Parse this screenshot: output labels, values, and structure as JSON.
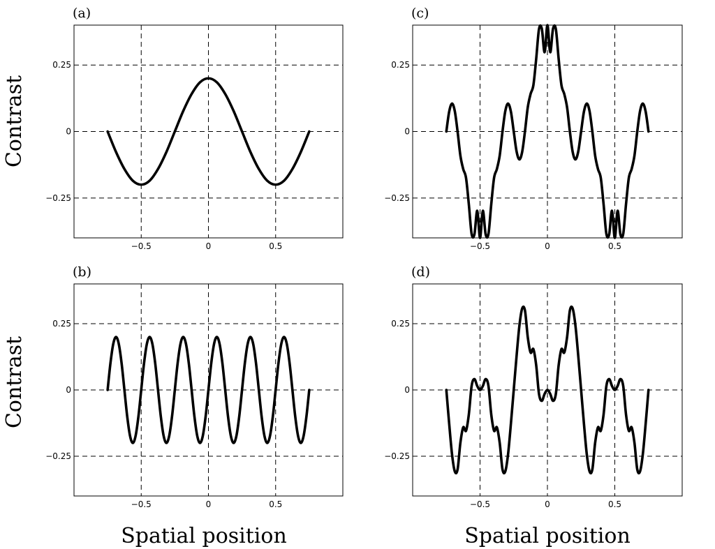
{
  "figure": {
    "ylabel_top": "Contrast",
    "ylabel_bottom": "Contrast",
    "xlabel_left": "Spatial position",
    "xlabel_right": "Spatial position"
  },
  "chart_data": [
    {
      "id": "a",
      "label": "(a)",
      "type": "line",
      "xlim": [
        -1.0,
        1.0
      ],
      "ylim": [
        -0.4,
        0.4
      ],
      "xticks": [
        -0.5,
        0,
        0.5
      ],
      "xtick_labels": [
        "−0.5",
        "0",
        "0.5"
      ],
      "yticks": [
        0.25,
        0,
        -0.25
      ],
      "ytick_labels": [
        "0.25",
        "0",
        "−0.25"
      ],
      "grid": true,
      "series": [
        {
          "x": [
            -0.75,
            -0.6875,
            -0.625,
            -0.5625,
            -0.5,
            -0.4375,
            -0.375,
            -0.3125,
            -0.25,
            -0.1875,
            -0.125,
            -0.0625,
            0,
            0.0625,
            0.125,
            0.1875,
            0.25,
            0.3125,
            0.375,
            0.4375,
            0.5,
            0.5625,
            0.625,
            0.6875,
            0.75
          ],
          "y": [
            0.0,
            -0.077,
            -0.141,
            -0.185,
            -0.2,
            -0.185,
            -0.141,
            -0.077,
            0.0,
            0.077,
            0.141,
            0.185,
            0.2,
            0.185,
            0.141,
            0.077,
            0.0,
            -0.077,
            -0.141,
            -0.185,
            -0.2,
            -0.185,
            -0.141,
            -0.077,
            0.0
          ]
        }
      ]
    },
    {
      "id": "b",
      "label": "(b)",
      "type": "line",
      "xlim": [
        -1.0,
        1.0
      ],
      "ylim": [
        -0.4,
        0.4
      ],
      "xticks": [
        -0.5,
        0,
        0.5
      ],
      "xtick_labels": [
        "−0.5",
        "0",
        "0.5"
      ],
      "yticks": [
        0.25,
        0,
        -0.25
      ],
      "ytick_labels": [
        "0.25",
        "0",
        "−0.25"
      ],
      "grid": true,
      "series": [
        {
          "x": [
            -0.75,
            -0.7292,
            -0.7083,
            -0.6875,
            -0.6667,
            -0.6458,
            -0.625,
            -0.6042,
            -0.5833,
            -0.5625,
            -0.5417,
            -0.5208,
            -0.5,
            -0.4792,
            -0.4583,
            -0.4375,
            -0.4167,
            -0.3958,
            -0.375,
            -0.3542,
            -0.3333,
            -0.3125,
            -0.2917,
            -0.2708,
            -0.25,
            -0.2292,
            -0.2083,
            -0.1875,
            -0.1667,
            -0.1458,
            -0.125,
            -0.1042,
            -0.0833,
            -0.0625,
            -0.0417,
            -0.0208,
            0,
            0.0208,
            0.0417,
            0.0625,
            0.0833,
            0.1042,
            0.125,
            0.1458,
            0.1667,
            0.1875,
            0.2083,
            0.2292,
            0.25,
            0.2708,
            0.2917,
            0.3125,
            0.3333,
            0.3542,
            0.375,
            0.3958,
            0.4167,
            0.4375,
            0.4583,
            0.4792,
            0.5,
            0.5208,
            0.5417,
            0.5625,
            0.5833,
            0.6042,
            0.625,
            0.6458,
            0.6667,
            0.6875,
            0.7083,
            0.7292,
            0.75
          ],
          "y": [
            0.0,
            0.1,
            0.173,
            0.2,
            0.173,
            0.1,
            0.0,
            -0.1,
            -0.173,
            -0.2,
            -0.173,
            -0.1,
            0.0,
            0.1,
            0.173,
            0.2,
            0.173,
            0.1,
            0.0,
            -0.1,
            -0.173,
            -0.2,
            -0.173,
            -0.1,
            0.0,
            0.1,
            0.173,
            0.2,
            0.173,
            0.1,
            0.0,
            -0.1,
            -0.173,
            -0.2,
            -0.173,
            -0.1,
            0.0,
            0.1,
            0.173,
            0.2,
            0.173,
            0.1,
            0.0,
            -0.1,
            -0.173,
            -0.2,
            -0.173,
            -0.1,
            0.0,
            0.1,
            0.173,
            0.2,
            0.173,
            0.1,
            0.0,
            -0.1,
            -0.173,
            -0.2,
            -0.173,
            -0.1,
            0.0,
            0.1,
            0.173,
            0.2,
            0.173,
            0.1,
            0.0,
            -0.1,
            -0.173,
            -0.2,
            -0.173,
            -0.1,
            0.0
          ]
        }
      ]
    },
    {
      "id": "c",
      "label": "(c)",
      "type": "line",
      "xlim": [
        -1.0,
        1.0
      ],
      "ylim": [
        -0.4,
        0.4
      ],
      "xticks": [
        -0.5,
        0,
        0.5
      ],
      "xtick_labels": [
        "−0.5",
        "0",
        "0.5"
      ],
      "yticks": [
        0.25,
        0,
        -0.25
      ],
      "ytick_labels": [
        "0.25",
        "0",
        "−0.25"
      ],
      "grid": true,
      "series": [
        {
          "x": [
            -0.75,
            -0.7292,
            -0.7083,
            -0.6875,
            -0.6667,
            -0.6458,
            -0.625,
            -0.6042,
            -0.5833,
            -0.5625,
            -0.5417,
            -0.5208,
            -0.5,
            -0.4792,
            -0.4583,
            -0.4375,
            -0.4167,
            -0.3958,
            -0.375,
            -0.3542,
            -0.3333,
            -0.3125,
            -0.2917,
            -0.2708,
            -0.25,
            -0.2292,
            -0.2083,
            -0.1875,
            -0.1667,
            -0.1458,
            -0.125,
            -0.1042,
            -0.0833,
            -0.0625,
            -0.0417,
            -0.0208,
            0,
            0.0208,
            0.0417,
            0.0625,
            0.0833,
            0.1042,
            0.125,
            0.1458,
            0.1667,
            0.1875,
            0.2083,
            0.2292,
            0.25,
            0.2708,
            0.2917,
            0.3125,
            0.3333,
            0.3542,
            0.375,
            0.3958,
            0.4167,
            0.4375,
            0.4583,
            0.4792,
            0.5,
            0.5208,
            0.5417,
            0.5625,
            0.5833,
            0.6042,
            0.625,
            0.6458,
            0.6667,
            0.6875,
            0.7083,
            0.7292,
            0.75
          ],
          "y": [
            0.0,
            0.074,
            0.105,
            0.077,
            -0.0,
            -0.091,
            -0.141,
            -0.174,
            -0.273,
            -0.385,
            -0.387,
            -0.298,
            -0.4,
            -0.298,
            -0.387,
            -0.385,
            -0.273,
            -0.174,
            -0.141,
            -0.091,
            0.0,
            0.077,
            0.105,
            0.074,
            0.0,
            -0.074,
            -0.105,
            -0.077,
            0.0,
            0.091,
            0.141,
            0.174,
            0.273,
            0.385,
            0.387,
            0.298,
            0.4,
            0.298,
            0.387,
            0.385,
            0.273,
            0.174,
            0.141,
            0.091,
            0.0,
            -0.077,
            -0.105,
            -0.074,
            0.0,
            0.074,
            0.105,
            0.077,
            -0.0,
            -0.091,
            -0.141,
            -0.174,
            -0.273,
            -0.385,
            -0.387,
            -0.298,
            -0.4,
            -0.298,
            -0.387,
            -0.385,
            -0.273,
            -0.174,
            -0.141,
            -0.091,
            0.0,
            0.077,
            0.105,
            0.074,
            0.0
          ]
        }
      ]
    },
    {
      "id": "d",
      "label": "(d)",
      "type": "line",
      "xlim": [
        -1.0,
        1.0
      ],
      "ylim": [
        -0.4,
        0.4
      ],
      "xticks": [
        -0.5,
        0,
        0.5
      ],
      "xtick_labels": [
        "−0.5",
        "0",
        "0.5"
      ],
      "yticks": [
        0.25,
        0,
        -0.25
      ],
      "ytick_labels": [
        "0.25",
        "0",
        "−0.25"
      ],
      "grid": true,
      "series": [
        {
          "x": [
            -0.75,
            -0.7292,
            -0.7083,
            -0.6875,
            -0.6667,
            -0.6458,
            -0.625,
            -0.6042,
            -0.5833,
            -0.5625,
            -0.5417,
            -0.5208,
            -0.5,
            -0.4792,
            -0.4583,
            -0.4375,
            -0.4167,
            -0.3958,
            -0.375,
            -0.3542,
            -0.3333,
            -0.3125,
            -0.2917,
            -0.2708,
            -0.25,
            -0.2292,
            -0.2083,
            -0.1875,
            -0.1667,
            -0.1458,
            -0.125,
            -0.1042,
            -0.0833,
            -0.0625,
            -0.0417,
            -0.0208,
            0,
            0.0208,
            0.0417,
            0.0625,
            0.0833,
            0.1042,
            0.125,
            0.1458,
            0.1667,
            0.1875,
            0.2083,
            0.2292,
            0.25,
            0.2708,
            0.2917,
            0.3125,
            0.3333,
            0.3542,
            0.375,
            0.3958,
            0.4167,
            0.4375,
            0.4583,
            0.4792,
            0.5,
            0.5208,
            0.5417,
            0.5625,
            0.5833,
            0.6042,
            0.625,
            0.6458,
            0.6667,
            0.6875,
            0.7083,
            0.7292,
            0.75
          ],
          "y": [
            0.0,
            -0.126,
            -0.241,
            -0.307,
            -0.3,
            -0.199,
            -0.141,
            -0.154,
            -0.093,
            0.015,
            0.041,
            0.015,
            0.0,
            0.015,
            0.041,
            0.015,
            -0.093,
            -0.154,
            -0.141,
            -0.199,
            -0.3,
            -0.307,
            -0.241,
            -0.126,
            0.0,
            0.126,
            0.241,
            0.307,
            0.3,
            0.199,
            0.141,
            0.154,
            0.093,
            -0.015,
            -0.041,
            -0.015,
            0.0,
            -0.015,
            -0.041,
            -0.015,
            0.093,
            0.154,
            0.141,
            0.199,
            0.3,
            0.307,
            0.241,
            0.126,
            0.0,
            -0.126,
            -0.241,
            -0.307,
            -0.3,
            -0.199,
            -0.141,
            -0.154,
            -0.093,
            0.015,
            0.041,
            0.015,
            0.0,
            0.015,
            0.041,
            0.015,
            -0.093,
            -0.154,
            -0.141,
            -0.199,
            -0.3,
            -0.307,
            -0.241,
            -0.126,
            0.0
          ]
        }
      ]
    }
  ]
}
